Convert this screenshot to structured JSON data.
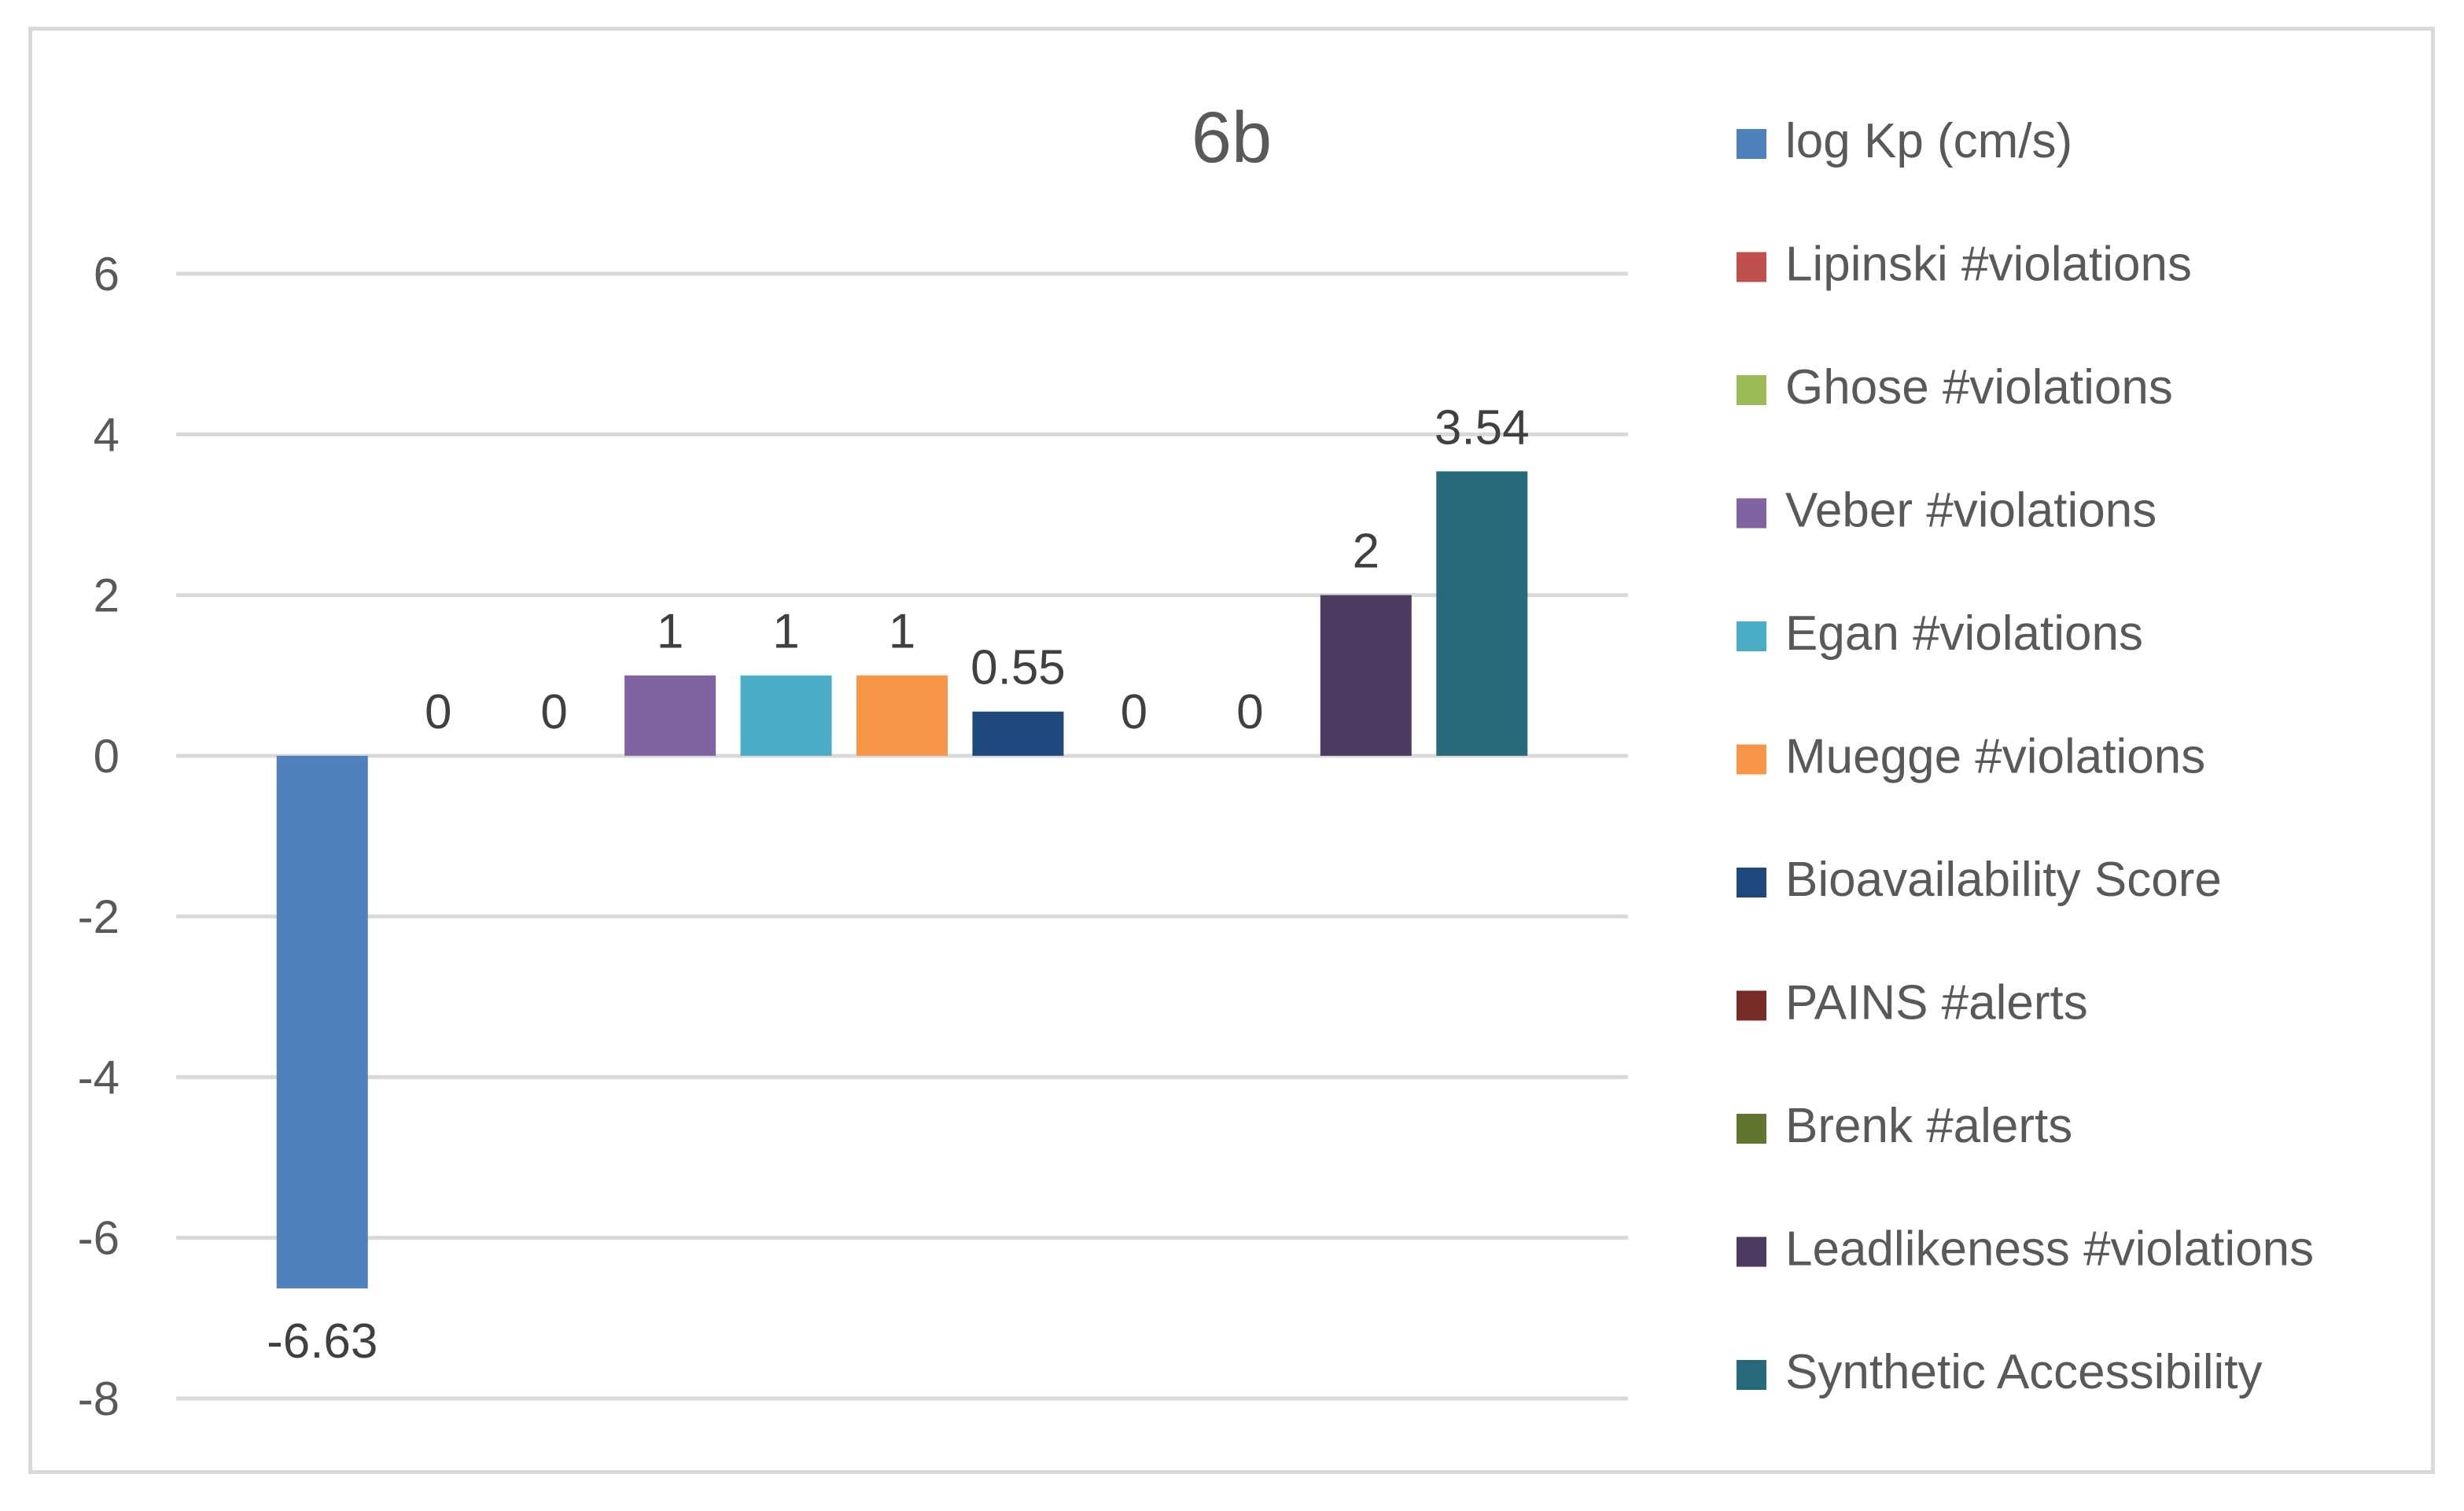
{
  "chart_data": {
    "type": "bar",
    "title": "6b",
    "xlabel": "",
    "ylabel": "",
    "ylim": [
      -8,
      6
    ],
    "yticks": [
      -8,
      -6,
      -4,
      -2,
      0,
      2,
      4,
      6
    ],
    "ytick_labels": [
      "-8",
      "-6",
      "-4",
      "-2",
      "0",
      "2",
      "4",
      "6"
    ],
    "grid": true,
    "legend_position": "right",
    "series": [
      {
        "name": "log Kp (cm/s)",
        "value": -6.63,
        "label": "-6.63",
        "color": "#4f81bd"
      },
      {
        "name": "Lipinski #violations",
        "value": 0,
        "label": "0",
        "color": "#c0504d"
      },
      {
        "name": "Ghose #violations",
        "value": 0,
        "label": "0",
        "color": "#9bbb59"
      },
      {
        "name": "Veber #violations",
        "value": 1,
        "label": "1",
        "color": "#8064a2"
      },
      {
        "name": "Egan #violations",
        "value": 1,
        "label": "1",
        "color": "#4bacc6"
      },
      {
        "name": "Muegge #violations",
        "value": 1,
        "label": "1",
        "color": "#f79646"
      },
      {
        "name": "Bioavailability Score",
        "value": 0.55,
        "label": "0.55",
        "color": "#1f497d"
      },
      {
        "name": "PAINS #alerts",
        "value": 0,
        "label": "0",
        "color": "#772c2a"
      },
      {
        "name": "Brenk #alerts",
        "value": 0,
        "label": "0",
        "color": "#5f7530"
      },
      {
        "name": "Leadlikeness #violations",
        "value": 2,
        "label": "2",
        "color": "#4d3b62"
      },
      {
        "name": "Synthetic Accessibility",
        "value": 3.54,
        "label": "3.54",
        "color": "#276a7c"
      }
    ]
  },
  "colors": {
    "gridline": "#d9d9d9",
    "text": "#595959",
    "data_label": "#404040"
  }
}
